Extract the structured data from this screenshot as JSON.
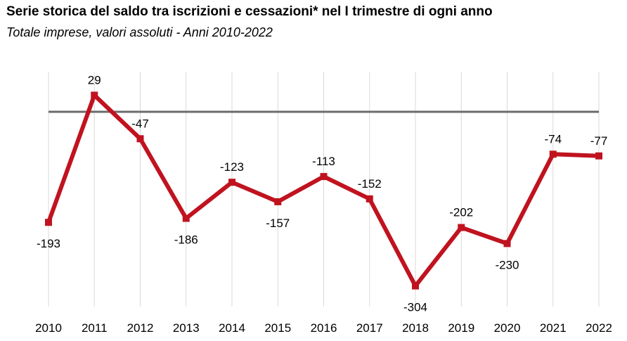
{
  "chart_data": {
    "type": "line",
    "title": "Serie storica del saldo tra iscrizioni e cessazioni* nel I trimestre di ogni anno",
    "subtitle": "Totale imprese, valori assoluti - Anni 2010-2022",
    "x": [
      "2010",
      "2011",
      "2012",
      "2013",
      "2014",
      "2015",
      "2016",
      "2017",
      "2018",
      "2019",
      "2020",
      "2021",
      "2022"
    ],
    "series": [
      {
        "values": [
          -193,
          29,
          -47,
          -186,
          -123,
          -157,
          -113,
          -152,
          -304,
          -202,
          -230,
          -74,
          -77
        ]
      }
    ],
    "data_labels": [
      "-193",
      "29",
      "-47",
      "-186",
      "-123",
      "-157",
      "-113",
      "-152",
      "-304",
      "-202",
      "-230",
      "-74",
      "-77"
    ],
    "ylim": [
      -340,
      70
    ],
    "zero_line": true,
    "grid": "vertical",
    "legend": "none",
    "colors": {
      "line": "#c0131f",
      "zero_line": "#6b6b6b",
      "grid": "#d9d9d9"
    }
  }
}
